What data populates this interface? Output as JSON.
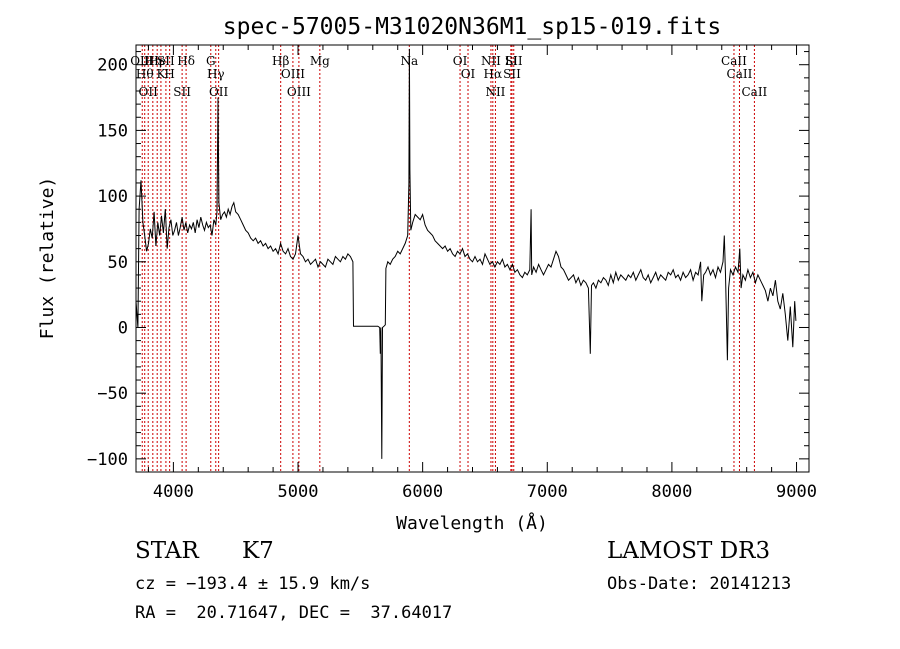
{
  "chart_data": {
    "type": "line",
    "title": "spec-57005-M31020N36M1_sp15-019.fits",
    "xlabel": "Wavelength (Å)",
    "ylabel": "Flux (relative)",
    "xlim": [
      3700,
      9100
    ],
    "ylim": [
      -110,
      215
    ],
    "xticks": [
      4000,
      5000,
      6000,
      7000,
      8000,
      9000
    ],
    "yticks": [
      -100,
      -50,
      0,
      50,
      100,
      150,
      200
    ],
    "grid": false,
    "line_color": "#000000",
    "marker_color": "#cc0000",
    "series": [
      {
        "points": [
          [
            3700,
            20
          ],
          [
            3715,
            0
          ],
          [
            3725,
            90
          ],
          [
            3740,
            112
          ],
          [
            3755,
            80
          ],
          [
            3770,
            70
          ],
          [
            3785,
            58
          ],
          [
            3800,
            64
          ],
          [
            3815,
            75
          ],
          [
            3830,
            68
          ],
          [
            3845,
            88
          ],
          [
            3860,
            62
          ],
          [
            3875,
            80
          ],
          [
            3890,
            70
          ],
          [
            3905,
            85
          ],
          [
            3920,
            72
          ],
          [
            3935,
            90
          ],
          [
            3950,
            60
          ],
          [
            3965,
            76
          ],
          [
            3980,
            82
          ],
          [
            3995,
            70
          ],
          [
            4010,
            74
          ],
          [
            4025,
            80
          ],
          [
            4040,
            70
          ],
          [
            4055,
            76
          ],
          [
            4070,
            84
          ],
          [
            4085,
            74
          ],
          [
            4100,
            80
          ],
          [
            4115,
            72
          ],
          [
            4130,
            78
          ],
          [
            4145,
            75
          ],
          [
            4160,
            80
          ],
          [
            4175,
            72
          ],
          [
            4190,
            82
          ],
          [
            4205,
            76
          ],
          [
            4220,
            84
          ],
          [
            4235,
            78
          ],
          [
            4250,
            74
          ],
          [
            4265,
            80
          ],
          [
            4280,
            76
          ],
          [
            4295,
            78
          ],
          [
            4310,
            70
          ],
          [
            4325,
            82
          ],
          [
            4340,
            78
          ],
          [
            4350,
            88
          ],
          [
            4358,
            175
          ],
          [
            4365,
            95
          ],
          [
            4380,
            82
          ],
          [
            4395,
            86
          ],
          [
            4410,
            88
          ],
          [
            4425,
            84
          ],
          [
            4440,
            90
          ],
          [
            4455,
            86
          ],
          [
            4470,
            92
          ],
          [
            4485,
            95
          ],
          [
            4500,
            88
          ],
          [
            4520,
            86
          ],
          [
            4540,
            82
          ],
          [
            4560,
            78
          ],
          [
            4580,
            74
          ],
          [
            4600,
            72
          ],
          [
            4620,
            68
          ],
          [
            4640,
            66
          ],
          [
            4660,
            68
          ],
          [
            4680,
            64
          ],
          [
            4700,
            66
          ],
          [
            4720,
            62
          ],
          [
            4740,
            64
          ],
          [
            4760,
            60
          ],
          [
            4780,
            62
          ],
          [
            4800,
            58
          ],
          [
            4820,
            60
          ],
          [
            4840,
            56
          ],
          [
            4860,
            64
          ],
          [
            4880,
            58
          ],
          [
            4900,
            56
          ],
          [
            4920,
            60
          ],
          [
            4940,
            54
          ],
          [
            4960,
            52
          ],
          [
            4980,
            56
          ],
          [
            5000,
            70
          ],
          [
            5020,
            56
          ],
          [
            5040,
            54
          ],
          [
            5060,
            50
          ],
          [
            5080,
            52
          ],
          [
            5100,
            48
          ],
          [
            5120,
            50
          ],
          [
            5140,
            52
          ],
          [
            5160,
            46
          ],
          [
            5180,
            50
          ],
          [
            5200,
            48
          ],
          [
            5220,
            46
          ],
          [
            5240,
            52
          ],
          [
            5260,
            50
          ],
          [
            5280,
            48
          ],
          [
            5300,
            54
          ],
          [
            5320,
            52
          ],
          [
            5340,
            50
          ],
          [
            5360,
            54
          ],
          [
            5380,
            52
          ],
          [
            5400,
            56
          ],
          [
            5420,
            54
          ],
          [
            5440,
            50
          ],
          [
            5445,
            1
          ],
          [
            5500,
            1
          ],
          [
            5550,
            1
          ],
          [
            5600,
            1
          ],
          [
            5640,
            1
          ],
          [
            5655,
            0
          ],
          [
            5660,
            -20
          ],
          [
            5665,
            0
          ],
          [
            5672,
            -100
          ],
          [
            5678,
            0
          ],
          [
            5690,
            1
          ],
          [
            5700,
            2
          ],
          [
            5705,
            45
          ],
          [
            5720,
            50
          ],
          [
            5740,
            48
          ],
          [
            5760,
            52
          ],
          [
            5780,
            54
          ],
          [
            5800,
            58
          ],
          [
            5820,
            56
          ],
          [
            5840,
            60
          ],
          [
            5860,
            64
          ],
          [
            5880,
            70
          ],
          [
            5890,
            110
          ],
          [
            5894,
            212
          ],
          [
            5898,
            120
          ],
          [
            5905,
            74
          ],
          [
            5920,
            80
          ],
          [
            5940,
            86
          ],
          [
            5960,
            84
          ],
          [
            5980,
            82
          ],
          [
            6000,
            86
          ],
          [
            6020,
            78
          ],
          [
            6040,
            74
          ],
          [
            6060,
            72
          ],
          [
            6080,
            70
          ],
          [
            6100,
            66
          ],
          [
            6120,
            64
          ],
          [
            6140,
            62
          ],
          [
            6160,
            60
          ],
          [
            6180,
            62
          ],
          [
            6200,
            58
          ],
          [
            6220,
            60
          ],
          [
            6240,
            56
          ],
          [
            6260,
            54
          ],
          [
            6280,
            58
          ],
          [
            6300,
            56
          ],
          [
            6320,
            60
          ],
          [
            6340,
            54
          ],
          [
            6360,
            56
          ],
          [
            6380,
            52
          ],
          [
            6400,
            50
          ],
          [
            6420,
            54
          ],
          [
            6440,
            50
          ],
          [
            6460,
            52
          ],
          [
            6480,
            48
          ],
          [
            6500,
            56
          ],
          [
            6520,
            52
          ],
          [
            6540,
            48
          ],
          [
            6560,
            50
          ],
          [
            6580,
            46
          ],
          [
            6600,
            50
          ],
          [
            6620,
            48
          ],
          [
            6640,
            52
          ],
          [
            6660,
            46
          ],
          [
            6680,
            48
          ],
          [
            6700,
            44
          ],
          [
            6720,
            48
          ],
          [
            6740,
            42
          ],
          [
            6760,
            44
          ],
          [
            6780,
            40
          ],
          [
            6800,
            38
          ],
          [
            6820,
            42
          ],
          [
            6840,
            40
          ],
          [
            6860,
            44
          ],
          [
            6870,
            90
          ],
          [
            6875,
            40
          ],
          [
            6890,
            46
          ],
          [
            6910,
            42
          ],
          [
            6930,
            48
          ],
          [
            6950,
            44
          ],
          [
            6970,
            40
          ],
          [
            6990,
            44
          ],
          [
            7010,
            48
          ],
          [
            7030,
            46
          ],
          [
            7050,
            52
          ],
          [
            7070,
            58
          ],
          [
            7090,
            54
          ],
          [
            7110,
            46
          ],
          [
            7130,
            44
          ],
          [
            7150,
            40
          ],
          [
            7170,
            36
          ],
          [
            7190,
            38
          ],
          [
            7210,
            40
          ],
          [
            7230,
            34
          ],
          [
            7250,
            38
          ],
          [
            7270,
            32
          ],
          [
            7290,
            36
          ],
          [
            7310,
            34
          ],
          [
            7330,
            30
          ],
          [
            7345,
            -20
          ],
          [
            7355,
            32
          ],
          [
            7370,
            34
          ],
          [
            7390,
            30
          ],
          [
            7410,
            36
          ],
          [
            7430,
            34
          ],
          [
            7450,
            38
          ],
          [
            7470,
            36
          ],
          [
            7490,
            32
          ],
          [
            7510,
            40
          ],
          [
            7530,
            34
          ],
          [
            7550,
            42
          ],
          [
            7570,
            36
          ],
          [
            7590,
            40
          ],
          [
            7610,
            38
          ],
          [
            7630,
            36
          ],
          [
            7650,
            40
          ],
          [
            7670,
            38
          ],
          [
            7690,
            42
          ],
          [
            7710,
            36
          ],
          [
            7730,
            40
          ],
          [
            7750,
            44
          ],
          [
            7770,
            38
          ],
          [
            7790,
            36
          ],
          [
            7810,
            40
          ],
          [
            7830,
            34
          ],
          [
            7850,
            38
          ],
          [
            7870,
            42
          ],
          [
            7890,
            36
          ],
          [
            7910,
            40
          ],
          [
            7930,
            38
          ],
          [
            7950,
            36
          ],
          [
            7970,
            42
          ],
          [
            7990,
            40
          ],
          [
            8010,
            44
          ],
          [
            8030,
            38
          ],
          [
            8050,
            40
          ],
          [
            8070,
            36
          ],
          [
            8090,
            42
          ],
          [
            8110,
            38
          ],
          [
            8130,
            40
          ],
          [
            8150,
            44
          ],
          [
            8170,
            36
          ],
          [
            8190,
            42
          ],
          [
            8210,
            40
          ],
          [
            8230,
            50
          ],
          [
            8240,
            20
          ],
          [
            8255,
            40
          ],
          [
            8270,
            42
          ],
          [
            8290,
            46
          ],
          [
            8310,
            40
          ],
          [
            8330,
            44
          ],
          [
            8350,
            38
          ],
          [
            8370,
            46
          ],
          [
            8390,
            42
          ],
          [
            8410,
            50
          ],
          [
            8420,
            70
          ],
          [
            8430,
            40
          ],
          [
            8445,
            -25
          ],
          [
            8455,
            30
          ],
          [
            8470,
            44
          ],
          [
            8490,
            40
          ],
          [
            8510,
            46
          ],
          [
            8530,
            42
          ],
          [
            8545,
            60
          ],
          [
            8555,
            30
          ],
          [
            8570,
            40
          ],
          [
            8590,
            36
          ],
          [
            8610,
            44
          ],
          [
            8630,
            38
          ],
          [
            8650,
            42
          ],
          [
            8670,
            34
          ],
          [
            8690,
            40
          ],
          [
            8710,
            36
          ],
          [
            8730,
            32
          ],
          [
            8750,
            28
          ],
          [
            8770,
            20
          ],
          [
            8790,
            30
          ],
          [
            8810,
            24
          ],
          [
            8830,
            36
          ],
          [
            8850,
            20
          ],
          [
            8870,
            14
          ],
          [
            8890,
            26
          ],
          [
            8910,
            10
          ],
          [
            8930,
            -10
          ],
          [
            8950,
            16
          ],
          [
            8970,
            -15
          ],
          [
            8985,
            20
          ],
          [
            8995,
            5
          ]
        ]
      }
    ],
    "markers": [
      {
        "x": 3750,
        "label": "OIII"
      },
      {
        "x": 3770,
        "label": "Hθ"
      },
      {
        "x": 3798,
        "label": "OII"
      },
      {
        "x": 3835,
        "label": "Hη"
      },
      {
        "x": 3870,
        "label": "He"
      },
      {
        "x": 3900,
        "label": "K"
      },
      {
        "x": 3940,
        "label": "SII"
      },
      {
        "x": 3970,
        "label": "H"
      },
      {
        "x": 4070,
        "label": "SII"
      },
      {
        "x": 4102,
        "label": "Hδ"
      },
      {
        "x": 4300,
        "label": "G"
      },
      {
        "x": 4340,
        "label": "Hγ"
      },
      {
        "x": 4363,
        "label": "OII"
      },
      {
        "x": 4861,
        "label": "Hβ"
      },
      {
        "x": 4959,
        "label": "OIII"
      },
      {
        "x": 5007,
        "label": "OIII"
      },
      {
        "x": 5175,
        "label": "Mg"
      },
      {
        "x": 5893,
        "label": "Na"
      },
      {
        "x": 6300,
        "label": "OI"
      },
      {
        "x": 6364,
        "label": "OI"
      },
      {
        "x": 6548,
        "label": "NII"
      },
      {
        "x": 6563,
        "label": "Hα"
      },
      {
        "x": 6584,
        "label": "NII"
      },
      {
        "x": 6708,
        "label": "Li"
      },
      {
        "x": 6717,
        "label": "SII"
      },
      {
        "x": 6731,
        "label": "SII"
      },
      {
        "x": 8498,
        "label": "CaII"
      },
      {
        "x": 8542,
        "label": "CaII"
      },
      {
        "x": 8662,
        "label": "CaII"
      }
    ]
  },
  "info": {
    "class": "STAR",
    "subclass": "K7",
    "survey": "LAMOST DR3",
    "cz": "cz = −193.4 ± 15.9 km/s",
    "obs_date": "Obs-Date: 20141213",
    "radec": "RA =  20.71647, DEC =  37.64017"
  }
}
